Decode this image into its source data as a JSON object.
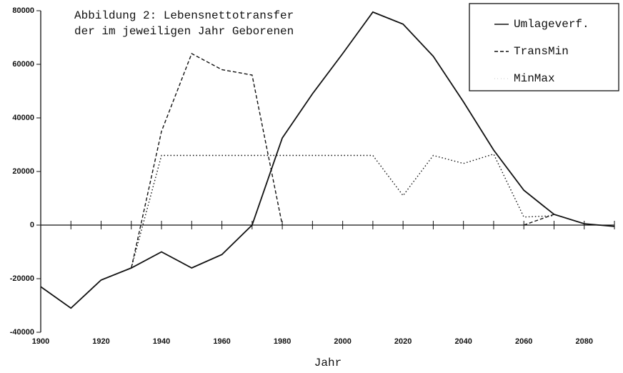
{
  "chart_data": {
    "type": "line",
    "title_lines": [
      "Abbildung 2: Lebensnettotransfer",
      "der im jeweiligen Jahr Geborenen"
    ],
    "x_label": "Jahr",
    "x": [
      1900,
      1910,
      1920,
      1930,
      1940,
      1950,
      1960,
      1970,
      1980,
      1990,
      2000,
      2010,
      2020,
      2030,
      2040,
      2050,
      2060,
      2070,
      2080,
      2090
    ],
    "series": [
      {
        "name": "Umlageverf.",
        "color": "#111111",
        "dash": "solid",
        "values": [
          -23000,
          -31000,
          -20500,
          -16000,
          -10000,
          -16000,
          -11000,
          0,
          32500,
          49000,
          64000,
          79500,
          75000,
          63000,
          46000,
          28000,
          13000,
          4000,
          500,
          -500
        ]
      },
      {
        "name": "TransMin",
        "color": "#111111",
        "dash": "dashed",
        "values": [
          null,
          null,
          null,
          -16000,
          35000,
          64000,
          58000,
          56000,
          0,
          null,
          null,
          null,
          null,
          null,
          null,
          null,
          0,
          4000,
          null,
          null
        ]
      },
      {
        "name": "MinMax",
        "color": "#111111",
        "dash": "dotted",
        "values": [
          null,
          null,
          null,
          -16000,
          26000,
          26000,
          26000,
          26000,
          26000,
          26000,
          26000,
          26000,
          11000,
          26000,
          23000,
          26500,
          3000,
          3500,
          null,
          null
        ]
      }
    ],
    "xlim": [
      1900,
      2090
    ],
    "xticks": [
      1900,
      1920,
      1940,
      1960,
      1980,
      2000,
      2020,
      2040,
      2060,
      2080
    ],
    "xminor_ticks": [
      1910,
      1930,
      1950,
      1970,
      1990,
      2010,
      2030,
      2050,
      2070,
      2090
    ],
    "ylim": [
      -40000,
      80000
    ],
    "yticks": [
      -40000,
      -20000,
      0,
      20000,
      40000,
      60000,
      80000
    ],
    "legend": "upper right"
  }
}
